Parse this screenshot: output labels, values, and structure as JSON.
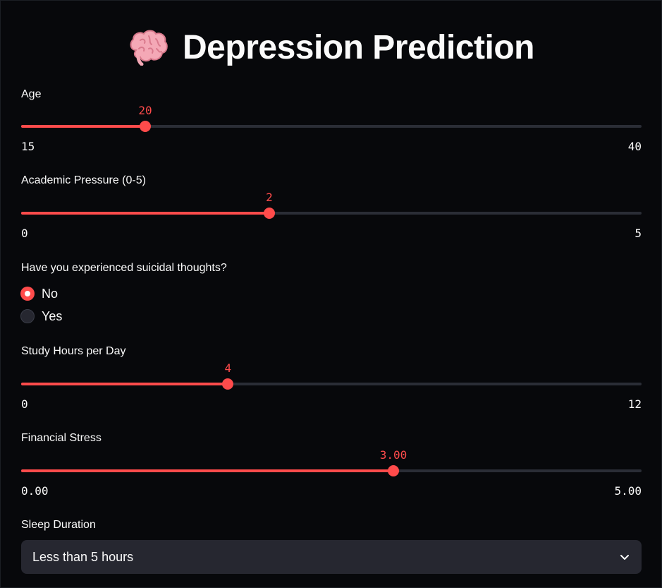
{
  "title": "Depression Prediction",
  "title_icon": "brain-icon",
  "accent_color": "#ff4b4b",
  "sliders": [
    {
      "label": "Age",
      "value": 20,
      "value_text": "20",
      "min": 15,
      "max": 40,
      "min_text": "15",
      "max_text": "40"
    },
    {
      "label": "Academic Pressure (0-5)",
      "value": 2,
      "value_text": "2",
      "min": 0,
      "max": 5,
      "min_text": "0",
      "max_text": "5"
    },
    {
      "label": "Study Hours per Day",
      "value": 4,
      "value_text": "4",
      "min": 0,
      "max": 12,
      "min_text": "0",
      "max_text": "12"
    },
    {
      "label": "Financial Stress",
      "value": 3.0,
      "value_text": "3.00",
      "min": 0.0,
      "max": 5.0,
      "min_text": "0.00",
      "max_text": "5.00"
    }
  ],
  "suicidal": {
    "label": "Have you experienced suicidal thoughts?",
    "options": [
      "No",
      "Yes"
    ],
    "selected": "No"
  },
  "sleep": {
    "label": "Sleep Duration",
    "selected": "Less than 5 hours",
    "icon": "chevron-down-icon"
  }
}
